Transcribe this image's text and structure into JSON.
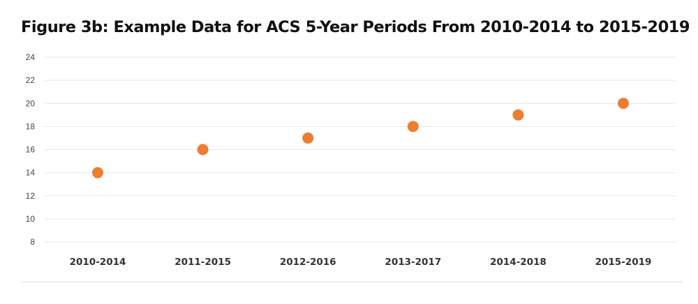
{
  "chart_data": {
    "type": "scatter",
    "title": "Figure 3b: Example Data for ACS 5-Year Periods From 2010-2014 to 2015-2019",
    "xlabel": "",
    "ylabel": "",
    "categories": [
      "2010-2014",
      "2011-2015",
      "2012-2016",
      "2013-2017",
      "2014-2018",
      "2015-2019"
    ],
    "values": [
      14,
      16,
      17,
      18,
      19,
      20
    ],
    "ylim": [
      8,
      24
    ],
    "yticks": [
      8,
      10,
      12,
      14,
      16,
      18,
      20,
      22,
      24
    ],
    "grid": true,
    "legend": "none",
    "point_color": "#ed7d31"
  }
}
